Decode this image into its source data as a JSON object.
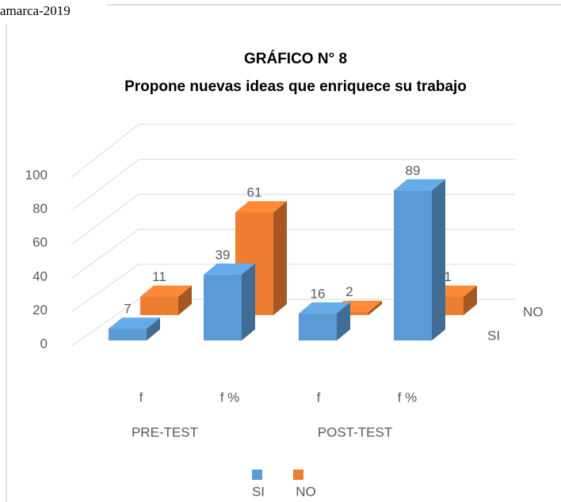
{
  "header_text": "amarca-2019",
  "chart_data": {
    "type": "bar3d",
    "title": [
      "GRÁFICO N° 8",
      "Propone nuevas ideas que enriquece su trabajo"
    ],
    "categories": [
      "f",
      "f %",
      "f",
      "f %"
    ],
    "groups": [
      "PRE-TEST",
      "POST-TEST"
    ],
    "series": [
      {
        "name": "SI",
        "color": "#5b9bd5",
        "values": [
          7,
          39,
          16,
          89
        ]
      },
      {
        "name": "NO",
        "color": "#ed7d31",
        "values": [
          11,
          61,
          2,
          11
        ]
      }
    ],
    "ylim": [
      0,
      100
    ],
    "yticks": [
      0,
      20,
      40,
      60,
      80,
      100
    ],
    "grid": true,
    "legend": "bottom"
  }
}
